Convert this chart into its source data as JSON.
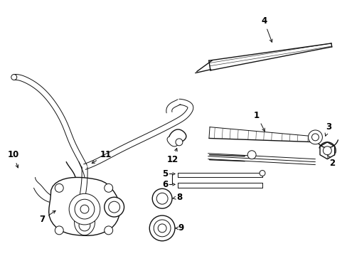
{
  "bg_color": "#ffffff",
  "line_color": "#111111",
  "text_color": "#000000",
  "fig_width": 4.89,
  "fig_height": 3.6,
  "dpi": 100
}
